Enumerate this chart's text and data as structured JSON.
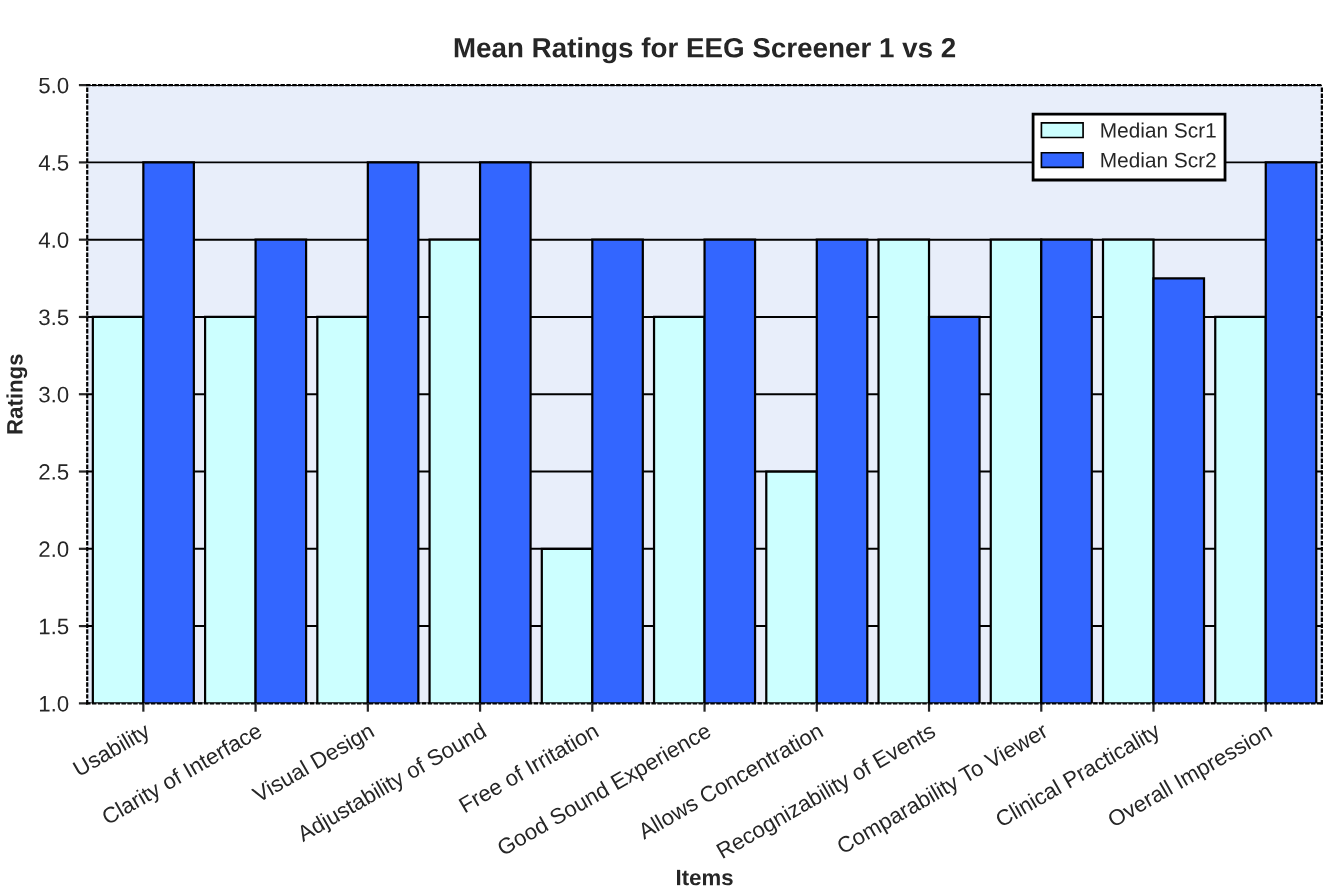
{
  "chart_data": {
    "type": "bar",
    "title": "Mean Ratings for EEG Screener 1 vs 2",
    "xlabel": "Items",
    "ylabel": "Ratings",
    "categories": [
      "Usability",
      "Clarity of Interface",
      "Visual Design",
      "Adjustability of Sound",
      "Free of Irritation",
      "Good Sound Experience",
      "Allows Concentration",
      "Recognizability of Events",
      "Comparability To Viewer",
      "Clinical Practicality",
      "Overall Impression"
    ],
    "series": [
      {
        "name": "Median Scr1",
        "color": "#ccffff",
        "values": [
          3.5,
          3.5,
          3.5,
          4.0,
          2.0,
          3.5,
          2.5,
          4.0,
          4.0,
          4.0,
          3.5
        ]
      },
      {
        "name": "Median Scr2",
        "color": "#3366ff",
        "values": [
          4.5,
          4.0,
          4.5,
          4.5,
          4.0,
          4.0,
          4.0,
          3.5,
          4.0,
          3.75,
          4.5
        ]
      }
    ],
    "ylim": [
      1.0,
      5.0
    ],
    "yticks": [
      {
        "value": 1,
        "label": "1.0"
      },
      1.5,
      {
        "value": 2,
        "label": "2.0"
      },
      2.5,
      {
        "value": 3,
        "label": "3.0"
      },
      3.5,
      {
        "value": 4,
        "label": "4.0"
      },
      4.5,
      {
        "value": 5,
        "label": "5.0"
      }
    ],
    "grid": "y",
    "legend": "top right"
  }
}
